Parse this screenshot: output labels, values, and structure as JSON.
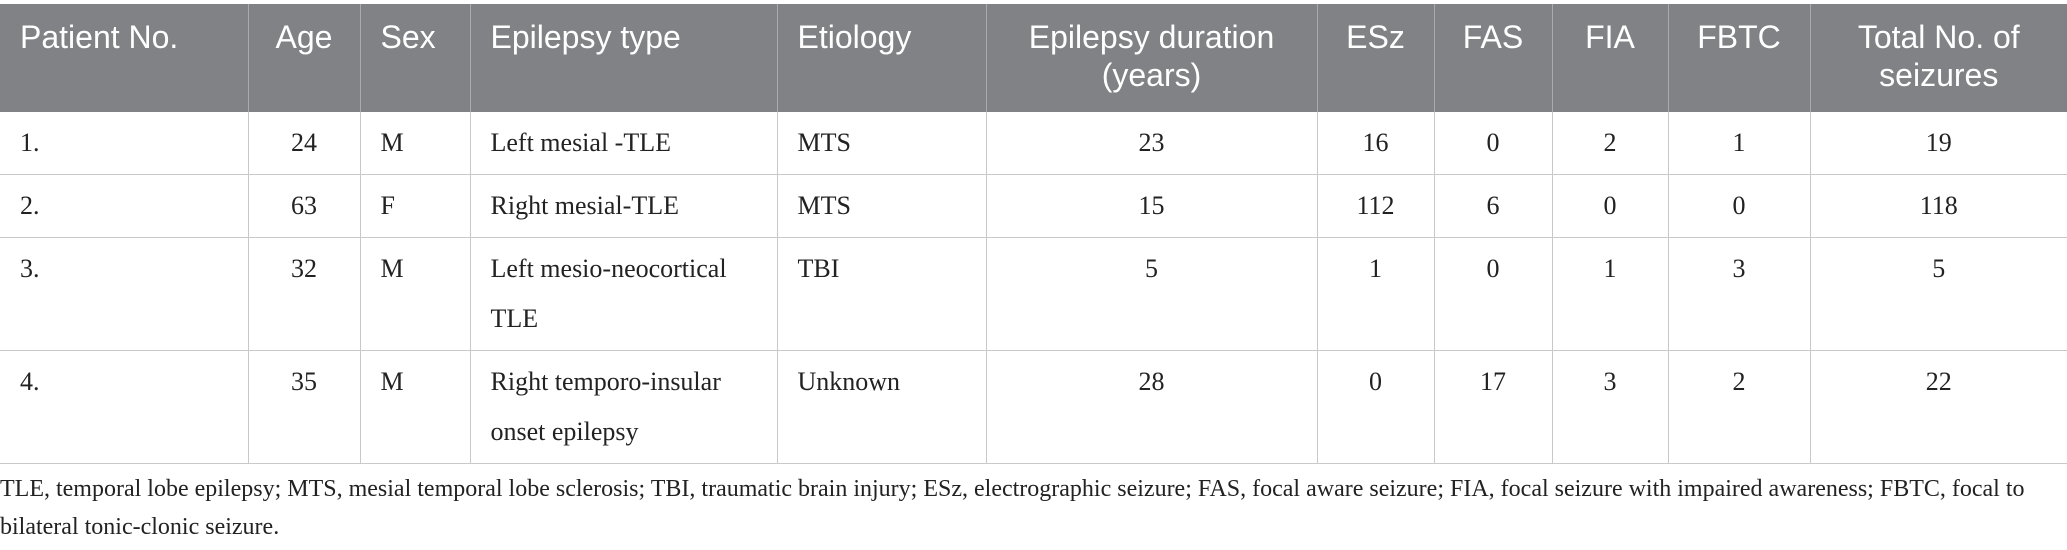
{
  "table": {
    "headers": [
      "Patient No.",
      "Age",
      "Sex",
      "Epilepsy type",
      "Etiology",
      "Epilepsy duration (years)",
      "ESz",
      "FAS",
      "FIA",
      "FBTC",
      "Total No. of seizures"
    ],
    "rows": [
      [
        "1.",
        "24",
        "M",
        "Left mesial -TLE",
        "MTS",
        "23",
        "16",
        "0",
        "2",
        "1",
        "19"
      ],
      [
        "2.",
        "63",
        "F",
        "Right mesial-TLE",
        "MTS",
        "15",
        "112",
        "6",
        "0",
        "0",
        "118"
      ],
      [
        "3.",
        "32",
        "M",
        "Left mesio-neocortical TLE",
        "TBI",
        "5",
        "1",
        "0",
        "1",
        "3",
        "5"
      ],
      [
        "4.",
        "35",
        "M",
        "Right temporo-insular onset epilepsy",
        "Unknown",
        "28",
        "0",
        "17",
        "3",
        "2",
        "22"
      ]
    ]
  },
  "footnote": "TLE, temporal lobe epilepsy; MTS, mesial temporal lobe sclerosis; TBI, traumatic brain injury; ESz, electrographic seizure; FAS, focal aware seizure; FIA, focal seizure with impaired awareness; FBTC, focal to bilateral tonic-clonic seizure.",
  "colors": {
    "header_background": "#808285",
    "header_text": "#ffffff",
    "grid_lines": "#c9c9c9"
  }
}
